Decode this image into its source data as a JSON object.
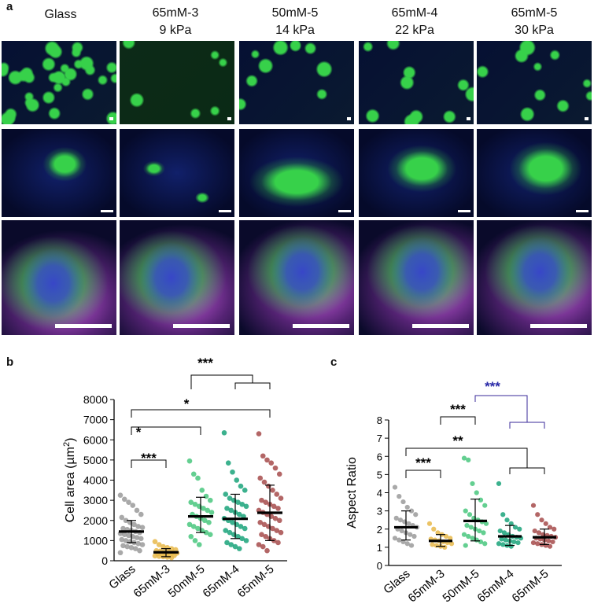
{
  "panel_letters": {
    "a": "a",
    "b": "b",
    "c": "c"
  },
  "columns": [
    {
      "line1": "Glass",
      "line2": ""
    },
    {
      "line1": "65mM-3",
      "line2": "9 kPa"
    },
    {
      "line1": "50mM-5",
      "line2": "14 kPa"
    },
    {
      "line1": "65mM-4",
      "line2": "22 kPa"
    },
    {
      "line1": "65mM-5",
      "line2": "30 kPa"
    }
  ],
  "colors": {
    "glass": "#9a9a9a",
    "s653": "#e8b84a",
    "s505": "#49c77e",
    "s654": "#1aa37a",
    "s655": "#a64b4b",
    "stain_actin": "#37d14a",
    "stain_nucleus": "#3846c8",
    "stain_vinculin": "#d060e6"
  },
  "chart_data": [
    {
      "type": "scatter",
      "ylabel": "Cell area (µm²)",
      "ylabel_main": "Cell area (µm",
      "ylabel_sup": "2",
      "ylabel_end": ")",
      "categories": [
        "Glass",
        "65mM-3",
        "50mM-5",
        "65mM-4",
        "65mM-5"
      ],
      "ylim": [
        0,
        8000
      ],
      "yticks": [
        "0",
        "1000",
        "2000",
        "3000",
        "4000",
        "5000",
        "6000",
        "7000",
        "8000"
      ],
      "ytick_values": [
        0,
        1000,
        2000,
        3000,
        4000,
        5000,
        6000,
        7000,
        8000
      ],
      "means": [
        1450,
        420,
        2200,
        2080,
        2380
      ],
      "sd_low": [
        900,
        200,
        1400,
        1100,
        1000
      ],
      "sd_high": [
        2000,
        600,
        3150,
        3300,
        3750
      ],
      "points": [
        [
          3250,
          3050,
          2900,
          2750,
          2500,
          2300,
          2150,
          2000,
          1900,
          1800,
          1700,
          1650,
          1600,
          1550,
          1500,
          1450,
          1400,
          1350,
          1300,
          1250,
          1200,
          1150,
          1100,
          1050,
          1000,
          950,
          900,
          850,
          800,
          750,
          700,
          650,
          600,
          500,
          400
        ],
        [
          950,
          800,
          700,
          650,
          600,
          550,
          500,
          480,
          450,
          420,
          400,
          380,
          350,
          330,
          300,
          280,
          260,
          240,
          220,
          200,
          180,
          150
        ],
        [
          4950,
          4300,
          4100,
          3500,
          3200,
          3000,
          2900,
          2800,
          2700,
          2600,
          2500,
          2400,
          2300,
          2200,
          2100,
          2000,
          1900,
          1800,
          1700,
          1600,
          1500,
          1400,
          1300,
          1200,
          1000,
          800
        ],
        [
          6350,
          4850,
          4400,
          4000,
          3700,
          3500,
          3300,
          3100,
          3000,
          2900,
          2800,
          2700,
          2600,
          2500,
          2400,
          2300,
          2200,
          2100,
          2000,
          1900,
          1800,
          1700,
          1600,
          1500,
          1400,
          1300,
          1200,
          1100,
          1000,
          900,
          800,
          700,
          600
        ],
        [
          6300,
          5200,
          5000,
          4850,
          4600,
          4300,
          4100,
          3900,
          3700,
          3500,
          3300,
          3100,
          3000,
          2900,
          2800,
          2700,
          2600,
          2500,
          2400,
          2300,
          2200,
          2100,
          2000,
          1900,
          1800,
          1700,
          1600,
          1500,
          1400,
          1300,
          1200,
          1100,
          1000,
          900,
          800,
          700,
          500
        ]
      ],
      "sig": [
        "***",
        "*",
        "*",
        "***"
      ]
    },
    {
      "type": "scatter",
      "ylabel": "Aspect Ratio",
      "categories": [
        "Glass",
        "65mM-3",
        "50mM-5",
        "65mM-4",
        "65mM-5"
      ],
      "ylim": [
        0,
        8
      ],
      "yticks": [
        "0",
        "1",
        "2",
        "3",
        "4",
        "5",
        "6",
        "7",
        "8"
      ],
      "ytick_values": [
        0,
        1,
        2,
        3,
        4,
        5,
        6,
        7,
        8
      ],
      "means": [
        2.1,
        1.35,
        2.45,
        1.6,
        1.55
      ],
      "sd_low": [
        1.4,
        1.05,
        1.35,
        1.1,
        1.15
      ],
      "sd_high": [
        3.0,
        1.7,
        3.65,
        2.2,
        2.0
      ],
      "points": [
        [
          4.3,
          3.8,
          3.5,
          3.2,
          3.0,
          2.8,
          2.6,
          2.5,
          2.4,
          2.3,
          2.2,
          2.1,
          2.0,
          1.9,
          1.8,
          1.7,
          1.6,
          1.5,
          1.4,
          1.3,
          1.2,
          1.1
        ],
        [
          2.3,
          2.0,
          1.8,
          1.7,
          1.6,
          1.5,
          1.45,
          1.4,
          1.35,
          1.3,
          1.25,
          1.2,
          1.15,
          1.1,
          1.05,
          1.0
        ],
        [
          5.9,
          5.8,
          4.5,
          4.0,
          3.6,
          3.3,
          3.0,
          2.8,
          2.6,
          2.5,
          2.4,
          2.3,
          2.2,
          2.1,
          2.0,
          1.9,
          1.8,
          1.7,
          1.6,
          1.5,
          1.4,
          1.3,
          1.2,
          1.1
        ],
        [
          4.5,
          2.8,
          2.5,
          2.3,
          2.1,
          2.0,
          1.9,
          1.8,
          1.7,
          1.6,
          1.55,
          1.5,
          1.45,
          1.4,
          1.35,
          1.3,
          1.25,
          1.2,
          1.15,
          1.1,
          1.05
        ],
        [
          3.3,
          2.8,
          2.5,
          2.3,
          2.1,
          2.0,
          1.9,
          1.8,
          1.7,
          1.65,
          1.6,
          1.55,
          1.5,
          1.45,
          1.4,
          1.35,
          1.3,
          1.25,
          1.2,
          1.15,
          1.1,
          1.05
        ]
      ],
      "sig": [
        "***",
        "***",
        "**",
        "***"
      ]
    }
  ]
}
